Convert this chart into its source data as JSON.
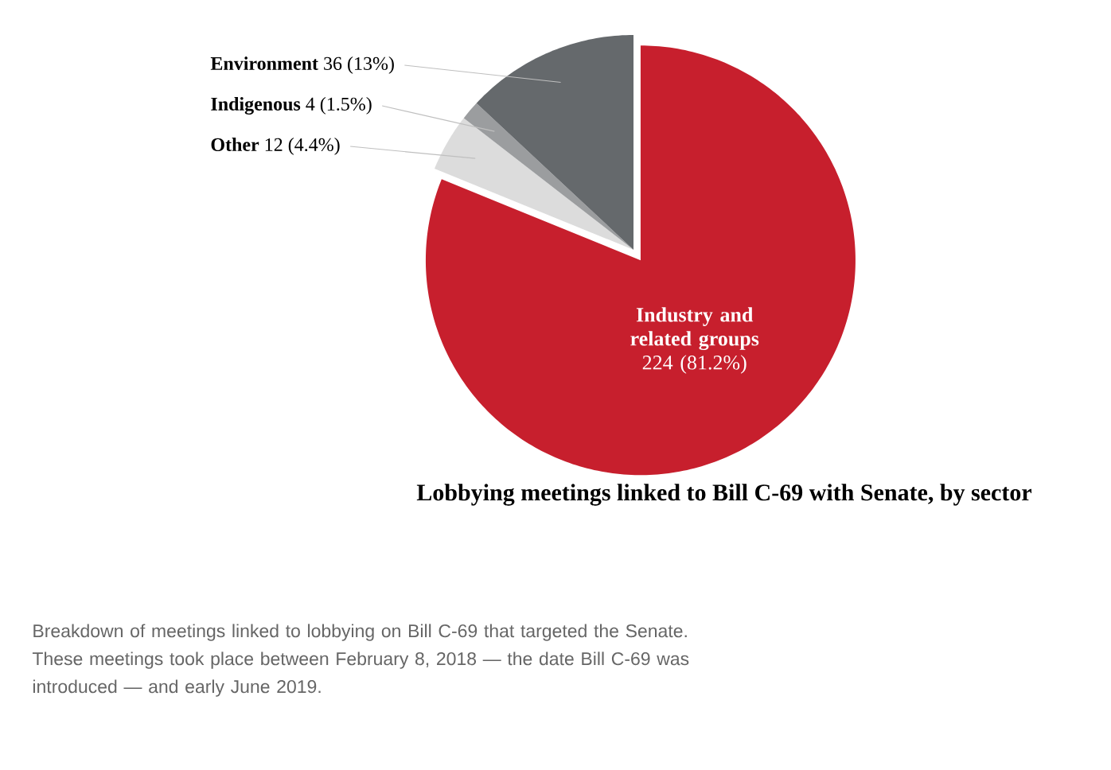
{
  "chart_data": {
    "type": "pie",
    "title": "Lobbying meetings linked to Bill C-69 with Senate, by sector",
    "categories": [
      "Industry and related groups",
      "Other",
      "Indigenous",
      "Environment"
    ],
    "values": [
      224,
      12,
      4,
      36
    ],
    "value_labels": [
      "224 (81.2%)",
      "12 (4.4%)",
      "4 (1.5%)",
      "36 (13%)"
    ],
    "colors": [
      "#c71f2d",
      "#dcdcdc",
      "#9b9d9f",
      "#65696c"
    ],
    "annotations": [
      "Breakdown of meetings linked to lobbying on Bill C-69 that targeted the Senate. These meetings took place between February 8, 2018 — the date Bill C-69 was introduced — and early June 2019."
    ]
  }
}
